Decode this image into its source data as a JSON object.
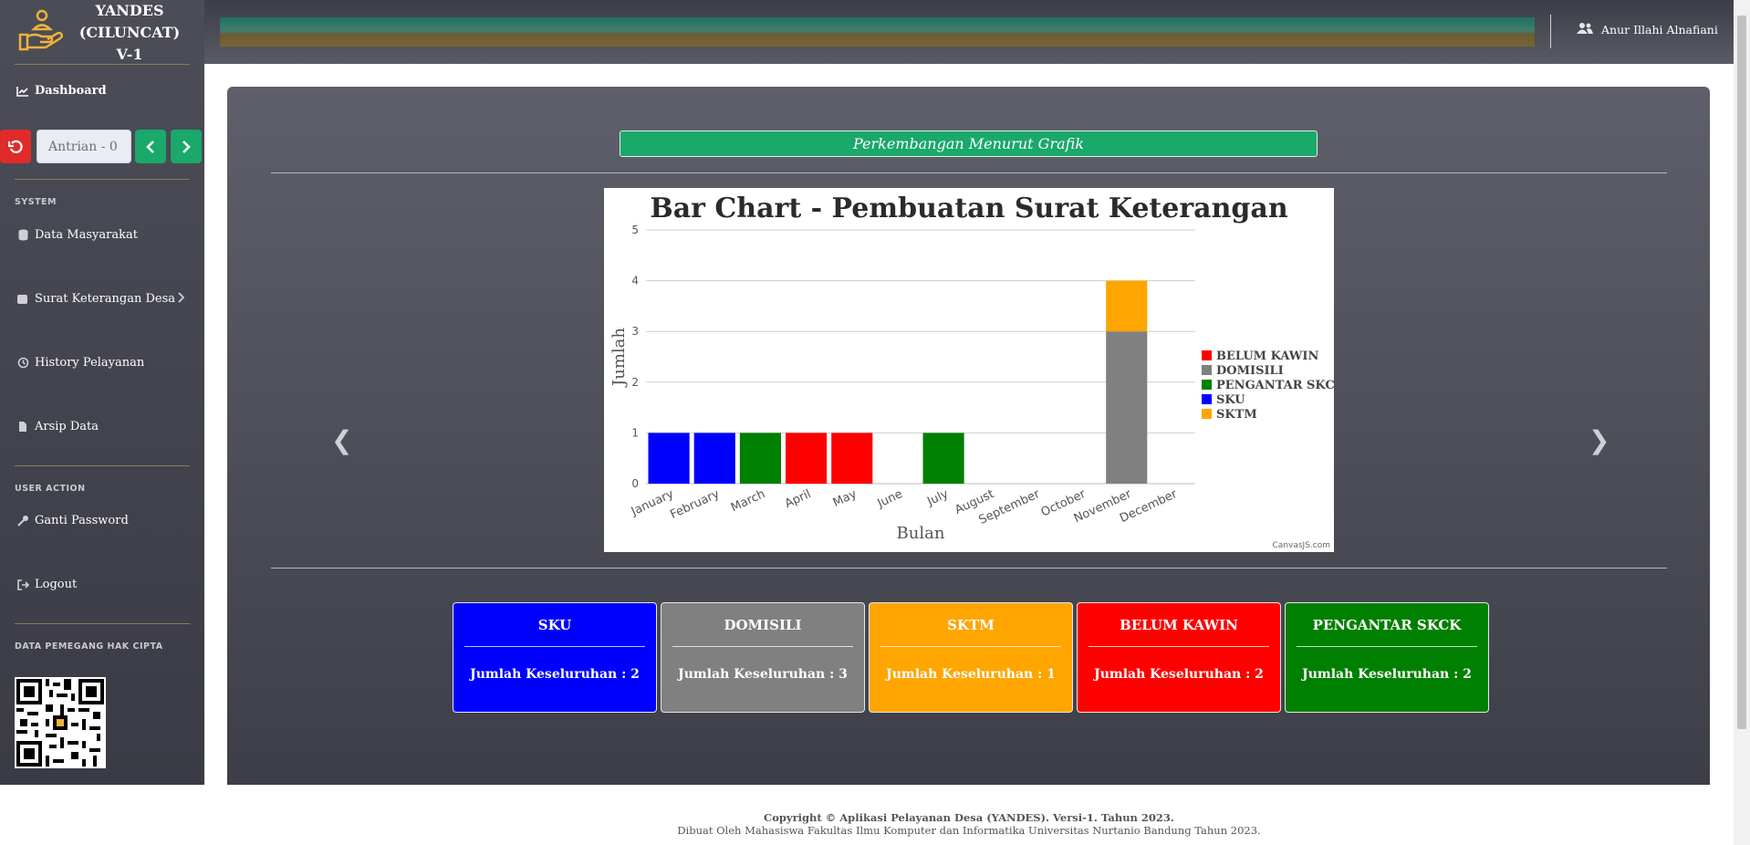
{
  "brand": {
    "line1": "YANDES",
    "line2": "(CILUNCAT)",
    "line3": "V-1"
  },
  "sidebar": {
    "dashboard": "Dashboard",
    "queue_label": "Antrian - 0",
    "section_system": "SYSTEM",
    "data_masyarakat": "Data Masyarakat",
    "surat_keterangan": "Surat Keterangan Desa",
    "history": "History Pelayanan",
    "arsip": "Arsip Data",
    "section_user": "USER ACTION",
    "ganti_password": "Ganti Password",
    "logout": "Logout",
    "section_copyright": "DATA PEMEGANG HAK CIPTA"
  },
  "topbar": {
    "user_name": "Anur Illahi Alnafiani"
  },
  "main": {
    "grafik_title": "Perkembangan Menurut Grafik",
    "prev_glyph": "❮",
    "next_glyph": "❯"
  },
  "chart_data": {
    "type": "bar",
    "stacked": true,
    "title": "Bar Chart - Pembuatan Surat Keterangan",
    "xlabel": "Bulan",
    "ylabel": "Jumlah",
    "ylim": [
      0,
      5
    ],
    "yticks": [
      0,
      1,
      2,
      3,
      4,
      5
    ],
    "grid": true,
    "legend_position": "right",
    "credit": "CanvasJS.com",
    "categories": [
      "January",
      "February",
      "March",
      "April",
      "May",
      "June",
      "July",
      "August",
      "September",
      "October",
      "November",
      "December"
    ],
    "series": [
      {
        "name": "BELUM KAWIN",
        "color": "#ff0000",
        "values": [
          0,
          0,
          0,
          1,
          1,
          0,
          0,
          0,
          0,
          0,
          0,
          0
        ]
      },
      {
        "name": "DOMISILI",
        "color": "#808080",
        "values": [
          0,
          0,
          0,
          0,
          0,
          0,
          0,
          0,
          0,
          0,
          3,
          0
        ]
      },
      {
        "name": "PENGANTAR SKCK",
        "color": "#008000",
        "values": [
          0,
          0,
          1,
          0,
          0,
          0,
          1,
          0,
          0,
          0,
          0,
          0
        ]
      },
      {
        "name": "SKU",
        "color": "#0000ff",
        "values": [
          1,
          1,
          0,
          0,
          0,
          0,
          0,
          0,
          0,
          0,
          0,
          0
        ]
      },
      {
        "name": "SKTM",
        "color": "#ffa500",
        "values": [
          0,
          0,
          0,
          0,
          0,
          0,
          0,
          0,
          0,
          0,
          1,
          0
        ]
      }
    ]
  },
  "stats": [
    {
      "title": "SKU",
      "body": "Jumlah Keseluruhan : 2",
      "color": "#0000ff"
    },
    {
      "title": "DOMISILI",
      "body": "Jumlah Keseluruhan : 3",
      "color": "#808080"
    },
    {
      "title": "SKTM",
      "body": "Jumlah Keseluruhan : 1",
      "color": "#ffa500"
    },
    {
      "title": "BELUM KAWIN",
      "body": "Jumlah Keseluruhan : 2",
      "color": "#ff0000"
    },
    {
      "title": "PENGANTAR SKCK",
      "body": "Jumlah Keseluruhan : 2",
      "color": "#008000"
    }
  ],
  "footer": {
    "line1": "Copyright © Aplikasi Pelayanan Desa (YANDES). Versi-1. Tahun 2023.",
    "line2": "Dibuat Oleh Mahasiswa Fakultas Ilmu Komputer dan Informatika Universitas Nurtanio Bandung Tahun 2023."
  }
}
